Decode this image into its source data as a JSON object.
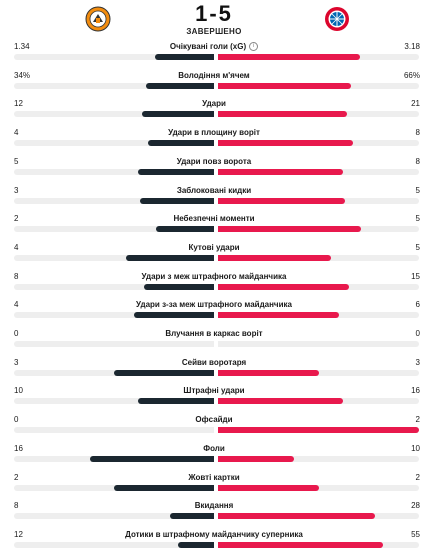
{
  "match": {
    "score": "1-5",
    "status": "ЗАВЕРШЕНО",
    "home_logo_icon": "shakhtar-crest-icon",
    "away_logo_icon": "bayern-crest-icon",
    "home_color": "#1b2730",
    "away_color": "#e8194d"
  },
  "stats": [
    {
      "label": "Очікувані голи (xG)",
      "home": "1.34",
      "away": "3.18",
      "home_share": 0.296,
      "away_share": 0.704,
      "info": true
    },
    {
      "label": "Володіння м'ячем",
      "home": "34%",
      "away": "66%",
      "home_share": 0.34,
      "away_share": 0.66
    },
    {
      "label": "Удари",
      "home": "12",
      "away": "21",
      "home_share": 0.36,
      "away_share": 0.64
    },
    {
      "label": "Удари в площину воріт",
      "home": "4",
      "away": "8",
      "home_share": 0.33,
      "away_share": 0.67
    },
    {
      "label": "Удари повз ворота",
      "home": "5",
      "away": "8",
      "home_share": 0.38,
      "away_share": 0.62
    },
    {
      "label": "Заблоковані кидки",
      "home": "3",
      "away": "5",
      "home_share": 0.37,
      "away_share": 0.63
    },
    {
      "label": "Небезпечні моменти",
      "home": "2",
      "away": "5",
      "home_share": 0.29,
      "away_share": 0.71
    },
    {
      "label": "Кутові удари",
      "home": "4",
      "away": "5",
      "home_share": 0.44,
      "away_share": 0.56
    },
    {
      "label": "Удари з меж штрафного майданчика",
      "home": "8",
      "away": "15",
      "home_share": 0.35,
      "away_share": 0.65
    },
    {
      "label": "Удари з-за меж штрафного майданчика",
      "home": "4",
      "away": "6",
      "home_share": 0.4,
      "away_share": 0.6
    },
    {
      "label": "Влучання в каркас воріт",
      "home": "0",
      "away": "0",
      "home_share": 0,
      "away_share": 0
    },
    {
      "label": "Сейви воротаря",
      "home": "3",
      "away": "3",
      "home_share": 0.5,
      "away_share": 0.5
    },
    {
      "label": "Штрафні удари",
      "home": "10",
      "away": "16",
      "home_share": 0.38,
      "away_share": 0.62
    },
    {
      "label": "Офсайди",
      "home": "0",
      "away": "2",
      "home_share": 0,
      "away_share": 1.0
    },
    {
      "label": "Фоли",
      "home": "16",
      "away": "10",
      "home_share": 0.62,
      "away_share": 0.38
    },
    {
      "label": "Жовті картки",
      "home": "2",
      "away": "2",
      "home_share": 0.5,
      "away_share": 0.5
    },
    {
      "label": "Вкидання",
      "home": "8",
      "away": "28",
      "home_share": 0.22,
      "away_share": 0.78
    },
    {
      "label": "Дотики в штрафному майданчику суперника",
      "home": "12",
      "away": "55",
      "home_share": 0.18,
      "away_share": 0.82
    }
  ]
}
